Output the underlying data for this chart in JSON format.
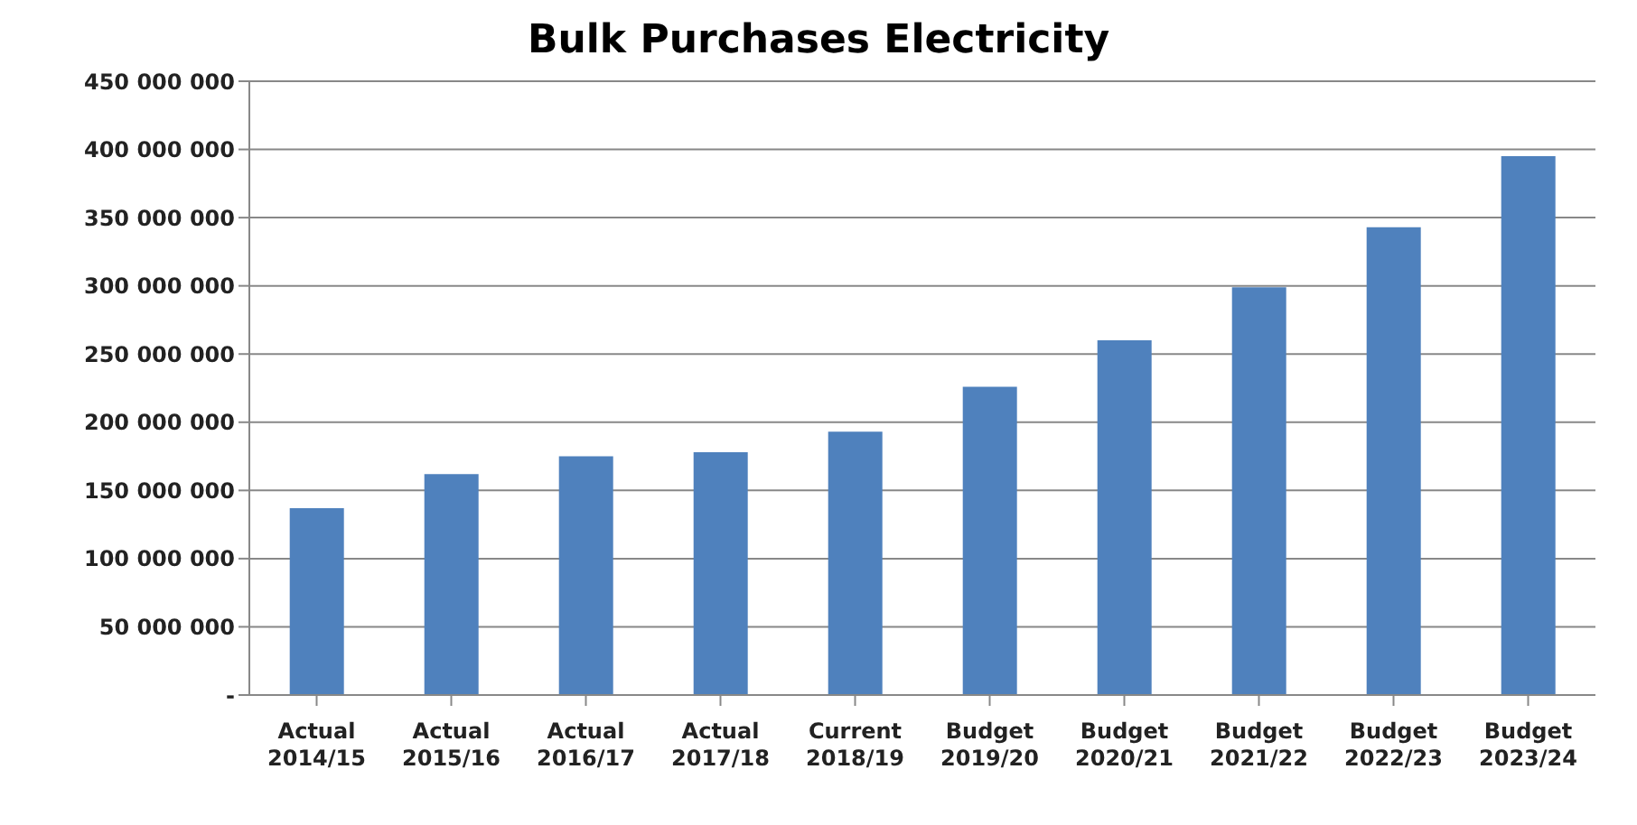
{
  "chart_data": {
    "type": "bar",
    "title": "Bulk Purchases Electricity",
    "categories": [
      "Actual 2014/15",
      "Actual 2015/16",
      "Actual 2016/17",
      "Actual 2017/18",
      "Current 2018/19",
      "Budget 2019/20",
      "Budget 2020/21",
      "Budget 2021/22",
      "Budget 2022/23",
      "Budget 2023/24"
    ],
    "values": [
      137000000,
      162000000,
      175000000,
      178000000,
      193000000,
      226000000,
      260000000,
      299000000,
      343000000,
      395000000
    ],
    "color": "#4f81bd",
    "ylim": [
      0,
      450000000
    ],
    "yticks": [
      {
        "value": 0,
        "label": "-"
      },
      {
        "value": 50000000,
        "label": "50 000 000"
      },
      {
        "value": 100000000,
        "label": "100 000 000"
      },
      {
        "value": 150000000,
        "label": "150 000 000"
      },
      {
        "value": 200000000,
        "label": "200 000 000"
      },
      {
        "value": 250000000,
        "label": "250 000 000"
      },
      {
        "value": 300000000,
        "label": "300 000 000"
      },
      {
        "value": 350000000,
        "label": "350 000 000"
      },
      {
        "value": 400000000,
        "label": "400 000 000"
      },
      {
        "value": 450000000,
        "label": "450 000 000"
      }
    ],
    "grid": "y"
  }
}
